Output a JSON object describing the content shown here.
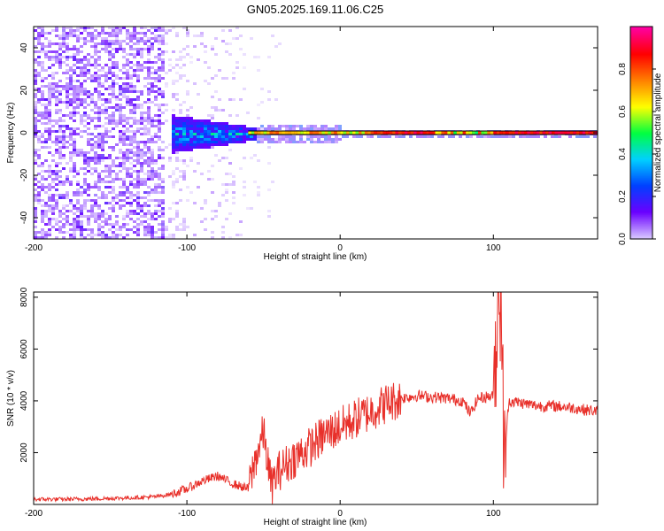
{
  "figure": {
    "title": "GN05.2025.169.11.06.C25"
  },
  "chart_data": [
    {
      "type": "heatmap",
      "xlabel": "Height of straight line (km)",
      "ylabel": "Frequency (Hz)",
      "xlim": [
        -200,
        168
      ],
      "ylim": [
        -50,
        50
      ],
      "x_ticks": [
        -200,
        -100,
        0,
        100
      ],
      "y_ticks": [
        -40,
        -20,
        0,
        20,
        40
      ],
      "colorbar": {
        "label": "Normalized spectral amplitude",
        "range": [
          0,
          1
        ],
        "ticks": [
          0.0,
          0.2,
          0.4,
          0.6,
          0.8
        ],
        "tick_labels": [
          "0.0",
          "0.2",
          "0.4",
          "0.6",
          "0.8"
        ],
        "colors": [
          "#d8c8ff",
          "#6a00ff",
          "#0040ff",
          "#00d0ff",
          "#00ff40",
          "#ffff00",
          "#ff8000",
          "#ff0000",
          "#ff00a0"
        ]
      },
      "regions": [
        {
          "x_range": [
            -200,
            -115
          ],
          "f_range": [
            -50,
            50
          ],
          "amplitude": 0.05,
          "description": "broadband noise"
        },
        {
          "x_range": [
            -115,
            -70
          ],
          "f_range": [
            -50,
            50
          ],
          "amplitude": 0.03,
          "description": "sparse noise"
        },
        {
          "x_range": [
            -110,
            -60
          ],
          "f_range": [
            -8,
            8
          ],
          "amplitude": 0.35,
          "description": "spreading signal"
        },
        {
          "x_range": [
            -60,
            168
          ],
          "f_range": [
            -1.5,
            1.5
          ],
          "amplitude": 0.9,
          "description": "narrow carrier line"
        }
      ]
    },
    {
      "type": "line",
      "xlabel": "Height of straight line (km)",
      "ylabel": "SNR (10 * v/v)",
      "xlim": [
        -200,
        168
      ],
      "ylim": [
        0,
        8200
      ],
      "x_ticks": [
        -200,
        -100,
        0,
        100
      ],
      "y_ticks": [
        2000,
        4000,
        6000,
        8000
      ],
      "color": "#e8302a",
      "series": [
        {
          "x": [
            -200,
            -180,
            -160,
            -140,
            -120,
            -110,
            -100,
            -90,
            -80,
            -70,
            -60,
            -55,
            -50,
            -45,
            -40,
            -30,
            -20,
            -10,
            0,
            10,
            20,
            30,
            40,
            50,
            60,
            70,
            80,
            85,
            90,
            100,
            103,
            105,
            107,
            110,
            120,
            130,
            140,
            150,
            160,
            168
          ],
          "values": [
            200,
            200,
            220,
            250,
            300,
            400,
            600,
            900,
            1100,
            800,
            600,
            1800,
            2800,
            700,
            1300,
            1800,
            2200,
            2700,
            3000,
            3300,
            3600,
            3900,
            4100,
            4200,
            4150,
            4100,
            4000,
            3500,
            4100,
            4200,
            7600,
            8100,
            1500,
            4000,
            3900,
            3800,
            3800,
            3750,
            3650,
            3600
          ]
        }
      ]
    }
  ]
}
